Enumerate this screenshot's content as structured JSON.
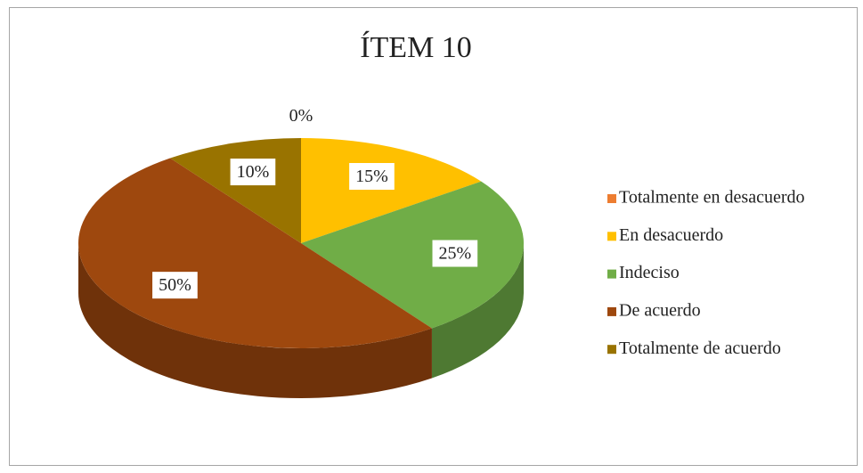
{
  "chart_data": {
    "type": "pie",
    "title": "ÍTEM 10",
    "categories": [
      "Totalmente en desacuerdo",
      "En desacuerdo",
      "Indeciso",
      "De acuerdo",
      "Totalmente de acuerdo"
    ],
    "values": [
      0,
      15,
      25,
      50,
      10
    ],
    "value_labels": [
      "0%",
      "15%",
      "25%",
      "50%",
      "10%"
    ],
    "colors": [
      "#ed7d31",
      "#ffc000",
      "#70ad47",
      "#9e480e",
      "#997300"
    ],
    "legend": "right"
  }
}
